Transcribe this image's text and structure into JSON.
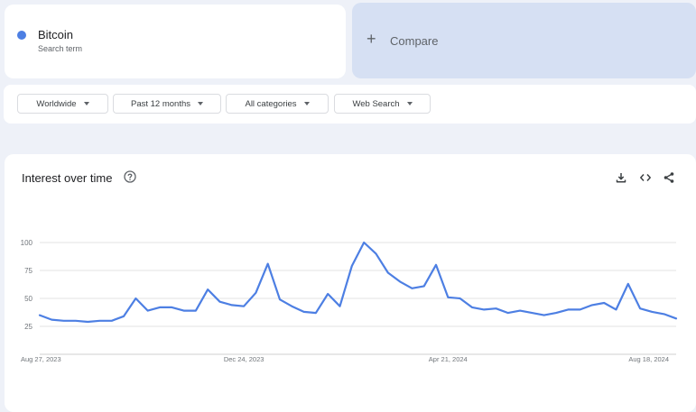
{
  "search_term": {
    "name": "Bitcoin",
    "subtitle": "Search term",
    "color": "#4d7fe3"
  },
  "compare": {
    "label": "Compare",
    "icon": "plus-icon"
  },
  "filters": [
    {
      "label": "Worldwide"
    },
    {
      "label": "Past 12 months"
    },
    {
      "label": "All categories"
    },
    {
      "label": "Web Search"
    }
  ],
  "panel": {
    "title": "Interest over time",
    "icons": [
      "help-icon",
      "download-icon",
      "embed-code-icon",
      "share-icon"
    ]
  },
  "chart_data": {
    "type": "line",
    "title": "",
    "xlabel": "",
    "ylabel": "",
    "ylim": [
      0,
      100
    ],
    "yticks": [
      25,
      50,
      75,
      100
    ],
    "grid": true,
    "x_tick_labels": [
      "Aug 27, 2023",
      "Dec 24, 2023",
      "Apr 21, 2024",
      "Aug 18, 2024"
    ],
    "x_tick_indices": [
      0,
      17,
      34,
      51
    ],
    "series": [
      {
        "color": "#4d7fe3",
        "values": [
          35,
          31,
          30,
          30,
          29,
          30,
          30,
          34,
          50,
          39,
          42,
          42,
          39,
          39,
          58,
          47,
          44,
          43,
          55,
          81,
          49,
          43,
          38,
          37,
          54,
          43,
          79,
          100,
          90,
          73,
          65,
          59,
          61,
          80,
          51,
          50,
          42,
          40,
          41,
          37,
          39,
          37,
          35,
          37,
          40,
          40,
          44,
          46,
          40,
          63,
          41,
          38,
          36,
          32
        ]
      }
    ]
  }
}
